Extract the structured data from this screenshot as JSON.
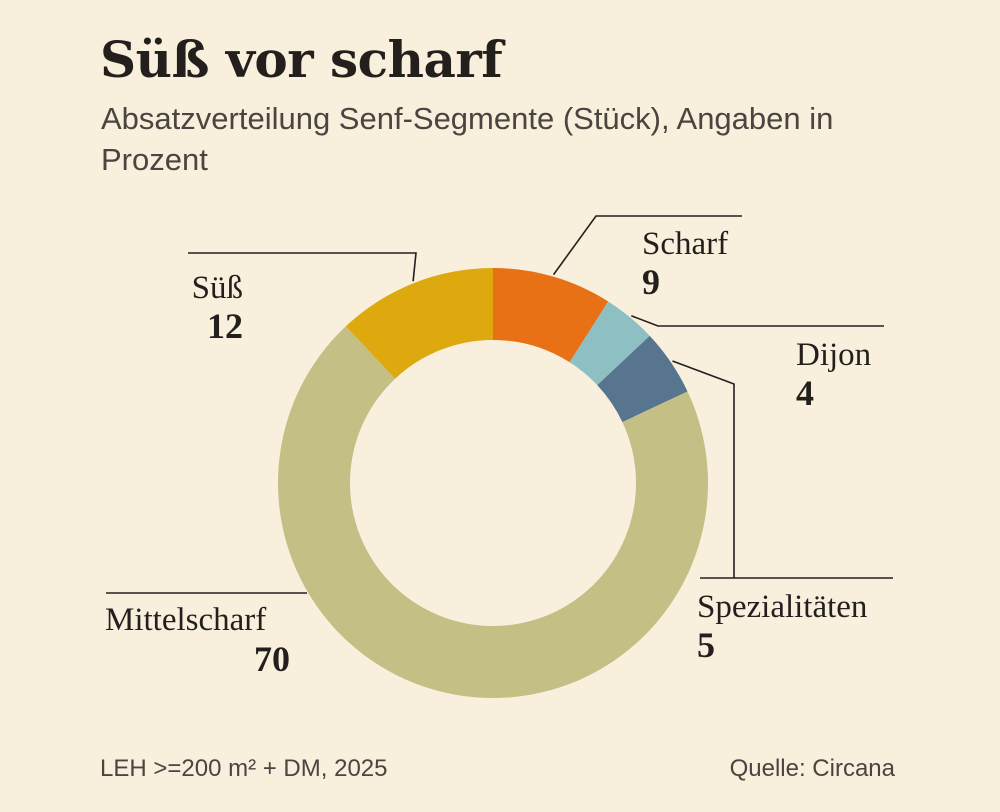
{
  "title": "Süß vor scharf",
  "subtitle": "Absatzverteilung Senf-Segmente (Stück), Angaben in Prozent",
  "footnote": "LEH >=200 m² + DM, 2025",
  "source": "Quelle: Circana",
  "chart_data": {
    "type": "pie",
    "variant": "donut",
    "slices": [
      {
        "label": "Scharf",
        "value": 9,
        "color": "#e87015"
      },
      {
        "label": "Dijon",
        "value": 4,
        "color": "#8ec0c3"
      },
      {
        "label": "Spezialitäten",
        "value": 5,
        "color": "#587590"
      },
      {
        "label": "Mittelscharf",
        "value": 70,
        "color": "#c3bf85"
      },
      {
        "label": "Süß",
        "value": 12,
        "color": "#dea80f"
      }
    ]
  }
}
